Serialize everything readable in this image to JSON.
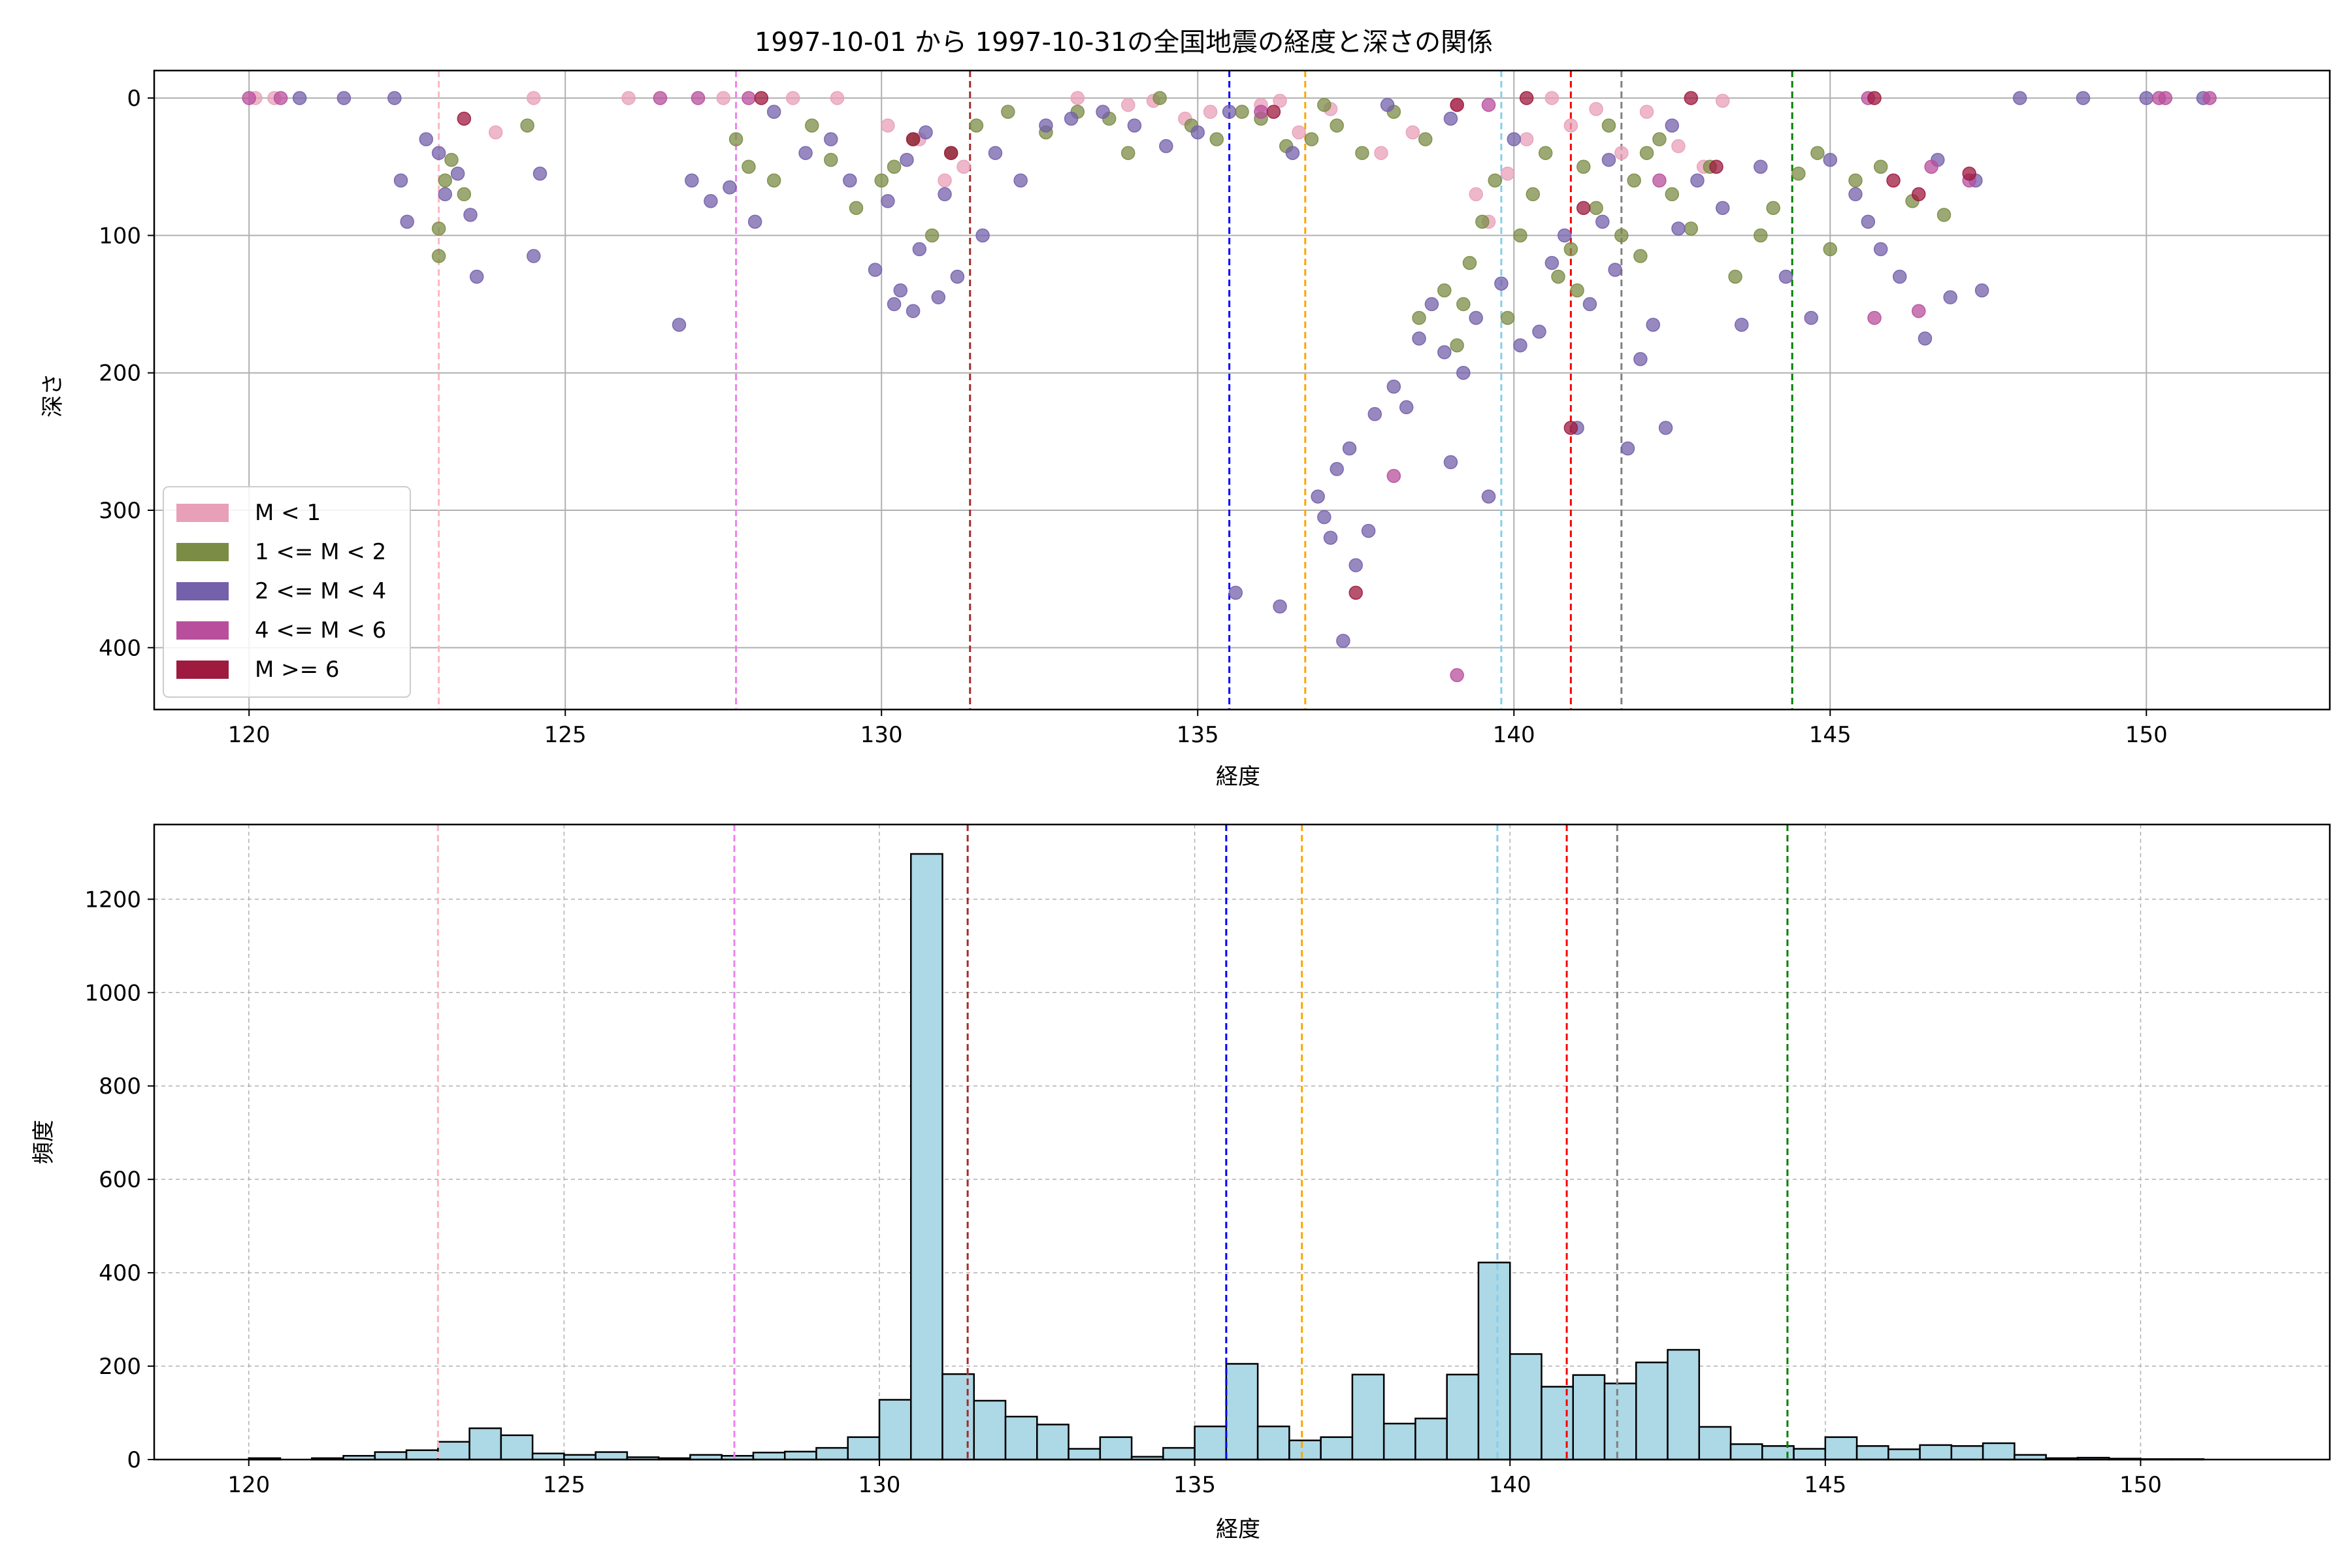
{
  "chart_data": [
    {
      "type": "scatter",
      "title": "1997-10-01 から 1997-10-31の全国地震の経度と深さの関係",
      "xlabel": "経度",
      "ylabel": "深さ",
      "xlim": [
        118.5,
        152.9
      ],
      "ylim": [
        445,
        -20
      ],
      "y_inverted": true,
      "x_ticks": [
        "120",
        "125",
        "130",
        "135",
        "140",
        "145",
        "150"
      ],
      "y_ticks": [
        "0",
        "100",
        "200",
        "300",
        "400"
      ],
      "grid": true,
      "legend_position": "lower-left",
      "legend": [
        {
          "label": "M < 1",
          "color": "#e8a0b8"
        },
        {
          "label": "1 <= M < 2",
          "color": "#7b8c45"
        },
        {
          "label": "2 <= M < 4",
          "color": "#7460ab"
        },
        {
          "label": "4 <= M < 6",
          "color": "#b84f9c"
        },
        {
          "label": "M >= 6",
          "color": "#9e1a3f"
        }
      ],
      "reference_lines": [
        {
          "x": 123.0,
          "color": "#ffb6c1"
        },
        {
          "x": 127.7,
          "color": "#ee82ee"
        },
        {
          "x": 131.4,
          "color": "#a52a2a"
        },
        {
          "x": 135.5,
          "color": "#0000ff"
        },
        {
          "x": 136.7,
          "color": "#ffa500"
        },
        {
          "x": 139.8,
          "color": "#87ceeb"
        },
        {
          "x": 140.9,
          "color": "#ff0000"
        },
        {
          "x": 141.7,
          "color": "#808080"
        },
        {
          "x": 144.4,
          "color": "#008000"
        }
      ],
      "series": [
        {
          "name": "M < 1",
          "points": [
            [
              120.1,
              0
            ],
            [
              120.4,
              0
            ],
            [
              124.5,
              0
            ],
            [
              126.0,
              0
            ],
            [
              127.5,
              0
            ],
            [
              128.6,
              0
            ],
            [
              129.3,
              0
            ],
            [
              130.6,
              30
            ],
            [
              131.0,
              60
            ],
            [
              131.3,
              50
            ],
            [
              133.1,
              0
            ],
            [
              133.9,
              5
            ],
            [
              134.3,
              2
            ],
            [
              135.2,
              10
            ],
            [
              136.0,
              5
            ],
            [
              136.6,
              25
            ],
            [
              137.1,
              8
            ],
            [
              137.9,
              40
            ],
            [
              138.4,
              25
            ],
            [
              139.1,
              5
            ],
            [
              139.4,
              70
            ],
            [
              139.6,
              90
            ],
            [
              139.9,
              55
            ],
            [
              140.2,
              30
            ],
            [
              140.6,
              0
            ],
            [
              140.9,
              20
            ],
            [
              141.3,
              8
            ],
            [
              141.7,
              40
            ],
            [
              142.1,
              10
            ],
            [
              142.6,
              35
            ],
            [
              143.0,
              50
            ],
            [
              143.3,
              2
            ],
            [
              123.9,
              25
            ],
            [
              130.1,
              20
            ],
            [
              134.8,
              15
            ],
            [
              136.3,
              2
            ]
          ]
        },
        {
          "name": "1 <= M < 2",
          "points": [
            [
              123.0,
              95
            ],
            [
              123.0,
              115
            ],
            [
              123.1,
              60
            ],
            [
              123.2,
              45
            ],
            [
              123.4,
              70
            ],
            [
              124.4,
              20
            ],
            [
              127.7,
              30
            ],
            [
              127.9,
              50
            ],
            [
              128.3,
              60
            ],
            [
              128.9,
              20
            ],
            [
              129.2,
              45
            ],
            [
              129.6,
              80
            ],
            [
              130.0,
              60
            ],
            [
              130.5,
              30
            ],
            [
              130.8,
              100
            ],
            [
              131.1,
              40
            ],
            [
              131.5,
              20
            ],
            [
              132.0,
              10
            ],
            [
              132.6,
              25
            ],
            [
              133.1,
              10
            ],
            [
              133.6,
              15
            ],
            [
              133.9,
              40
            ],
            [
              134.4,
              0
            ],
            [
              134.9,
              20
            ],
            [
              135.3,
              30
            ],
            [
              135.7,
              10
            ],
            [
              136.0,
              15
            ],
            [
              136.4,
              35
            ],
            [
              136.8,
              30
            ],
            [
              137.2,
              20
            ],
            [
              137.6,
              40
            ],
            [
              138.1,
              10
            ],
            [
              138.6,
              30
            ],
            [
              138.9,
              140
            ],
            [
              139.1,
              180
            ],
            [
              139.3,
              120
            ],
            [
              139.5,
              90
            ],
            [
              139.7,
              60
            ],
            [
              139.9,
              160
            ],
            [
              140.1,
              100
            ],
            [
              140.3,
              70
            ],
            [
              140.5,
              40
            ],
            [
              140.7,
              130
            ],
            [
              140.9,
              110
            ],
            [
              141.1,
              50
            ],
            [
              141.3,
              80
            ],
            [
              141.5,
              20
            ],
            [
              141.7,
              100
            ],
            [
              141.9,
              60
            ],
            [
              142.1,
              40
            ],
            [
              142.3,
              30
            ],
            [
              142.5,
              70
            ],
            [
              142.8,
              95
            ],
            [
              143.1,
              50
            ],
            [
              143.5,
              130
            ],
            [
              143.9,
              100
            ],
            [
              144.1,
              80
            ],
            [
              144.5,
              55
            ],
            [
              144.8,
              40
            ],
            [
              145.0,
              110
            ],
            [
              145.4,
              60
            ],
            [
              145.8,
              50
            ],
            [
              146.3,
              75
            ],
            [
              146.8,
              85
            ],
            [
              139.2,
              150
            ],
            [
              138.5,
              160
            ],
            [
              141.0,
              140
            ],
            [
              142.0,
              115
            ],
            [
              137.0,
              5
            ],
            [
              130.2,
              50
            ]
          ]
        },
        {
          "name": "2 <= M < 4",
          "points": [
            [
              120.8,
              0
            ],
            [
              121.5,
              0
            ],
            [
              122.3,
              0
            ],
            [
              122.4,
              60
            ],
            [
              122.5,
              90
            ],
            [
              122.8,
              30
            ],
            [
              123.0,
              40
            ],
            [
              123.1,
              70
            ],
            [
              123.3,
              55
            ],
            [
              123.5,
              85
            ],
            [
              123.6,
              130
            ],
            [
              124.5,
              115
            ],
            [
              124.6,
              55
            ],
            [
              126.8,
              165
            ],
            [
              127.0,
              60
            ],
            [
              127.3,
              75
            ],
            [
              127.6,
              65
            ],
            [
              128.0,
              90
            ],
            [
              128.3,
              10
            ],
            [
              128.8,
              40
            ],
            [
              129.2,
              30
            ],
            [
              129.5,
              60
            ],
            [
              129.9,
              125
            ],
            [
              130.2,
              150
            ],
            [
              130.3,
              140
            ],
            [
              130.5,
              155
            ],
            [
              130.6,
              110
            ],
            [
              130.9,
              145
            ],
            [
              131.2,
              130
            ],
            [
              131.6,
              100
            ],
            [
              131.0,
              70
            ],
            [
              130.7,
              25
            ],
            [
              130.4,
              45
            ],
            [
              130.1,
              75
            ],
            [
              131.8,
              40
            ],
            [
              132.2,
              60
            ],
            [
              132.6,
              20
            ],
            [
              133.0,
              15
            ],
            [
              133.5,
              10
            ],
            [
              134.0,
              20
            ],
            [
              134.5,
              35
            ],
            [
              135.0,
              25
            ],
            [
              135.5,
              10
            ],
            [
              135.6,
              360
            ],
            [
              136.3,
              370
            ],
            [
              136.9,
              290
            ],
            [
              137.0,
              305
            ],
            [
              137.1,
              320
            ],
            [
              137.2,
              270
            ],
            [
              137.3,
              395
            ],
            [
              137.4,
              255
            ],
            [
              137.5,
              340
            ],
            [
              137.7,
              315
            ],
            [
              137.8,
              230
            ],
            [
              138.1,
              210
            ],
            [
              138.3,
              225
            ],
            [
              138.5,
              175
            ],
            [
              138.7,
              150
            ],
            [
              138.9,
              185
            ],
            [
              139.0,
              265
            ],
            [
              139.2,
              200
            ],
            [
              139.4,
              160
            ],
            [
              139.6,
              290
            ],
            [
              139.8,
              135
            ],
            [
              140.1,
              180
            ],
            [
              140.4,
              170
            ],
            [
              140.6,
              120
            ],
            [
              140.8,
              100
            ],
            [
              141.0,
              240
            ],
            [
              141.2,
              150
            ],
            [
              141.4,
              90
            ],
            [
              141.6,
              125
            ],
            [
              141.8,
              255
            ],
            [
              142.0,
              190
            ],
            [
              142.2,
              165
            ],
            [
              142.4,
              240
            ],
            [
              142.6,
              95
            ],
            [
              142.9,
              60
            ],
            [
              143.3,
              80
            ],
            [
              143.6,
              165
            ],
            [
              143.9,
              50
            ],
            [
              144.3,
              130
            ],
            [
              144.7,
              160
            ],
            [
              145.0,
              45
            ],
            [
              145.4,
              70
            ],
            [
              145.8,
              110
            ],
            [
              146.1,
              130
            ],
            [
              146.5,
              175
            ],
            [
              146.9,
              145
            ],
            [
              147.4,
              140
            ],
            [
              147.3,
              60
            ],
            [
              146.7,
              45
            ],
            [
              145.6,
              90
            ],
            [
              148.0,
              0
            ],
            [
              149.0,
              0
            ],
            [
              150.0,
              0
            ],
            [
              150.9,
              0
            ],
            [
              139.0,
              15
            ],
            [
              140.0,
              30
            ],
            [
              141.5,
              45
            ],
            [
              142.5,
              20
            ],
            [
              138.0,
              5
            ],
            [
              136.5,
              40
            ]
          ]
        },
        {
          "name": "4 <= M < 6",
          "points": [
            [
              120.0,
              0
            ],
            [
              120.5,
              0
            ],
            [
              126.5,
              0
            ],
            [
              127.1,
              0
            ],
            [
              127.9,
              0
            ],
            [
              136.0,
              10
            ],
            [
              138.1,
              275
            ],
            [
              139.1,
              420
            ],
            [
              145.6,
              0
            ],
            [
              146.4,
              155
            ],
            [
              145.7,
              160
            ],
            [
              147.2,
              60
            ],
            [
              146.6,
              50
            ],
            [
              150.3,
              0
            ],
            [
              150.2,
              0
            ],
            [
              151.0,
              0
            ],
            [
              142.3,
              60
            ],
            [
              139.6,
              5
            ]
          ]
        },
        {
          "name": "M >= 6",
          "points": [
            [
              128.1,
              0
            ],
            [
              130.5,
              30
            ],
            [
              131.1,
              40
            ],
            [
              136.2,
              10
            ],
            [
              137.5,
              360
            ],
            [
              139.1,
              5
            ],
            [
              140.2,
              0
            ],
            [
              140.9,
              240
            ],
            [
              141.1,
              80
            ],
            [
              142.8,
              0
            ],
            [
              143.2,
              50
            ],
            [
              145.7,
              0
            ],
            [
              146.4,
              70
            ],
            [
              146.0,
              60
            ],
            [
              147.2,
              55
            ],
            [
              123.4,
              15
            ]
          ]
        }
      ]
    },
    {
      "type": "bar",
      "title": "",
      "xlabel": "経度",
      "ylabel": "頻度",
      "xlim": [
        118.5,
        153.0
      ],
      "ylim": [
        0,
        1360
      ],
      "x_ticks": [
        "120",
        "125",
        "130",
        "135",
        "140",
        "145",
        "150"
      ],
      "y_ticks": [
        "0",
        "200",
        "400",
        "600",
        "800",
        "1000",
        "1200"
      ],
      "grid": true,
      "bar_color": "#add8e6",
      "bin_edges_start": 120.0,
      "bin_width": 0.5,
      "values": [
        3,
        0,
        3,
        8,
        16,
        20,
        38,
        67,
        52,
        13,
        10,
        16,
        5,
        3,
        10,
        8,
        15,
        17,
        25,
        48,
        128,
        1297,
        183,
        126,
        92,
        75,
        23,
        48,
        6,
        25,
        71,
        205,
        71,
        41,
        48,
        182,
        77,
        88,
        182,
        422,
        226,
        156,
        181,
        163,
        208,
        235,
        70,
        33,
        29,
        23,
        48,
        29,
        22,
        31,
        29,
        35,
        10,
        3,
        4,
        2,
        1,
        1,
        0,
        0
      ]
    }
  ]
}
